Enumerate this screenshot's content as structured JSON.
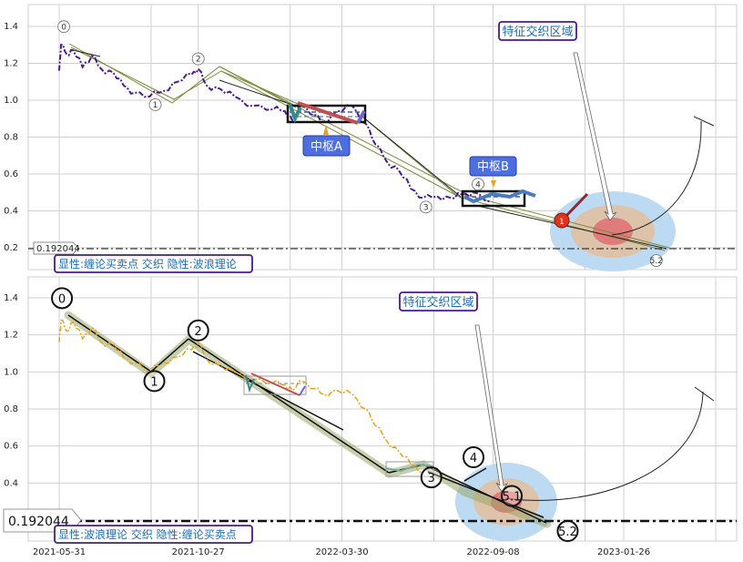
{
  "chart_data": [
    {
      "type": "line",
      "panel": "top",
      "ylim": [
        0.15,
        1.5
      ],
      "yticks": [
        "0.2",
        "0.4",
        "0.6",
        "0.8",
        "1.0",
        "1.2",
        "1.4"
      ],
      "grid": true,
      "level_label": "0.192044",
      "level_value": 0.192044,
      "legend_text": "显性:缠论买卖点 交织 隐性:波浪理论",
      "annotations": {
        "region": "特征交织区域",
        "pivot_a": "中枢A",
        "pivot_b": "中枢B",
        "buy_badge": "1"
      },
      "wave_labels": [
        "0",
        "1",
        "2",
        "3",
        "4",
        "5.2"
      ],
      "wave_points": [
        {
          "label": "0",
          "x": "2021-06-03",
          "y": 1.3
        },
        {
          "label": "1",
          "x": "2021-09-10",
          "y": 1.01
        },
        {
          "label": "2",
          "x": "2021-10-27",
          "y": 1.17
        },
        {
          "label": "3",
          "x": "2022-06-28",
          "y": 0.47
        },
        {
          "label": "4",
          "x": "2022-08-18",
          "y": 0.5
        },
        {
          "label": "5.2",
          "x": "2023-02-27",
          "y": 0.19
        }
      ],
      "series": [
        {
          "color": "#4b1a8c",
          "values": [
            {
              "x": "2021-05-31",
              "y": 1.16
            },
            {
              "x": "2021-06-02",
              "y": 1.3
            },
            {
              "x": "2021-06-08",
              "y": 1.25
            },
            {
              "x": "2021-06-15",
              "y": 1.27
            },
            {
              "x": "2021-06-25",
              "y": 1.18
            },
            {
              "x": "2021-07-05",
              "y": 1.24
            },
            {
              "x": "2021-07-15",
              "y": 1.17
            },
            {
              "x": "2021-07-28",
              "y": 1.15
            },
            {
              "x": "2021-08-08",
              "y": 1.08
            },
            {
              "x": "2021-08-20",
              "y": 1.04
            },
            {
              "x": "2021-09-05",
              "y": 1.02
            },
            {
              "x": "2021-09-20",
              "y": 1.05
            },
            {
              "x": "2021-10-05",
              "y": 1.1
            },
            {
              "x": "2021-10-20",
              "y": 1.14
            },
            {
              "x": "2021-10-27",
              "y": 1.17
            },
            {
              "x": "2021-11-05",
              "y": 1.08
            },
            {
              "x": "2021-11-20",
              "y": 1.06
            },
            {
              "x": "2021-12-05",
              "y": 1.02
            },
            {
              "x": "2021-12-25",
              "y": 0.97
            },
            {
              "x": "2022-01-15",
              "y": 0.95
            },
            {
              "x": "2022-01-28",
              "y": 0.94
            },
            {
              "x": "2022-02-05",
              "y": 0.89
            },
            {
              "x": "2022-02-15",
              "y": 0.97
            },
            {
              "x": "2022-03-01",
              "y": 0.92
            },
            {
              "x": "2022-03-10",
              "y": 0.88
            },
            {
              "x": "2022-03-25",
              "y": 0.94
            },
            {
              "x": "2022-04-10",
              "y": 0.97
            },
            {
              "x": "2022-04-25",
              "y": 0.87
            },
            {
              "x": "2022-05-05",
              "y": 0.76
            },
            {
              "x": "2022-05-18",
              "y": 0.66
            },
            {
              "x": "2022-05-30",
              "y": 0.62
            },
            {
              "x": "2022-06-12",
              "y": 0.52
            },
            {
              "x": "2022-06-25",
              "y": 0.47
            },
            {
              "x": "2022-07-10",
              "y": 0.48
            },
            {
              "x": "2022-07-25",
              "y": 0.47
            },
            {
              "x": "2022-08-05",
              "y": 0.49
            },
            {
              "x": "2022-08-18",
              "y": 0.5
            },
            {
              "x": "2022-09-05",
              "y": 0.45
            }
          ]
        }
      ]
    },
    {
      "type": "line",
      "panel": "bottom",
      "ylim": [
        0.15,
        1.5
      ],
      "yticks": [
        "0.2",
        "0.4",
        "0.6",
        "0.8",
        "1.0",
        "1.2",
        "1.4"
      ],
      "xticks": [
        "2021-05-31",
        "2021-10-27",
        "2022-03-30",
        "2022-09-08",
        "2023-01-26"
      ],
      "grid": true,
      "level_label": "0.192044",
      "level_value": 0.192044,
      "legend_text": "显性:波浪理论 交织 隐性:缠论买卖点",
      "annotations": {
        "region": "特征交织区域"
      },
      "wave_labels": [
        "0",
        "1",
        "2",
        "3",
        "4",
        "5.1",
        "5.2"
      ],
      "wave_points": [
        {
          "label": "0",
          "x": "2021-06-03",
          "y": 1.3
        },
        {
          "label": "1",
          "x": "2021-09-10",
          "y": 0.98
        },
        {
          "label": "2",
          "x": "2021-10-27",
          "y": 1.17
        },
        {
          "label": "3",
          "x": "2022-06-28",
          "y": 0.47
        },
        {
          "label": "4",
          "x": "2022-08-18",
          "y": 0.5
        },
        {
          "label": "5.1",
          "x": "2022-09-28",
          "y": 0.36
        },
        {
          "label": "5.2",
          "x": "2022-11-25",
          "y": 0.19
        }
      ],
      "series": [
        {
          "color": "#e8a317",
          "values": [
            {
              "x": "2021-05-31",
              "y": 1.16
            },
            {
              "x": "2021-06-02",
              "y": 1.28
            },
            {
              "x": "2021-06-08",
              "y": 1.22
            },
            {
              "x": "2021-06-15",
              "y": 1.27
            },
            {
              "x": "2021-06-25",
              "y": 1.18
            },
            {
              "x": "2021-07-05",
              "y": 1.24
            },
            {
              "x": "2021-07-15",
              "y": 1.16
            },
            {
              "x": "2021-07-28",
              "y": 1.15
            },
            {
              "x": "2021-08-08",
              "y": 1.08
            },
            {
              "x": "2021-08-20",
              "y": 1.05
            },
            {
              "x": "2021-09-05",
              "y": 1.0
            },
            {
              "x": "2021-09-20",
              "y": 1.05
            },
            {
              "x": "2021-10-05",
              "y": 1.08
            },
            {
              "x": "2021-10-20",
              "y": 1.12
            },
            {
              "x": "2021-10-27",
              "y": 1.16
            },
            {
              "x": "2021-11-05",
              "y": 1.07
            },
            {
              "x": "2021-11-20",
              "y": 1.03
            },
            {
              "x": "2021-12-05",
              "y": 1.0
            },
            {
              "x": "2021-12-25",
              "y": 0.96
            },
            {
              "x": "2022-01-15",
              "y": 0.94
            },
            {
              "x": "2022-01-28",
              "y": 0.93
            },
            {
              "x": "2022-02-05",
              "y": 0.9
            },
            {
              "x": "2022-02-15",
              "y": 0.95
            },
            {
              "x": "2022-03-01",
              "y": 0.91
            },
            {
              "x": "2022-03-10",
              "y": 0.88
            },
            {
              "x": "2022-03-25",
              "y": 0.9
            },
            {
              "x": "2022-04-10",
              "y": 0.88
            },
            {
              "x": "2022-04-25",
              "y": 0.8
            },
            {
              "x": "2022-05-05",
              "y": 0.71
            },
            {
              "x": "2022-05-18",
              "y": 0.62
            },
            {
              "x": "2022-05-30",
              "y": 0.57
            },
            {
              "x": "2022-06-12",
              "y": 0.5
            },
            {
              "x": "2022-06-25",
              "y": 0.46
            }
          ]
        }
      ]
    }
  ]
}
